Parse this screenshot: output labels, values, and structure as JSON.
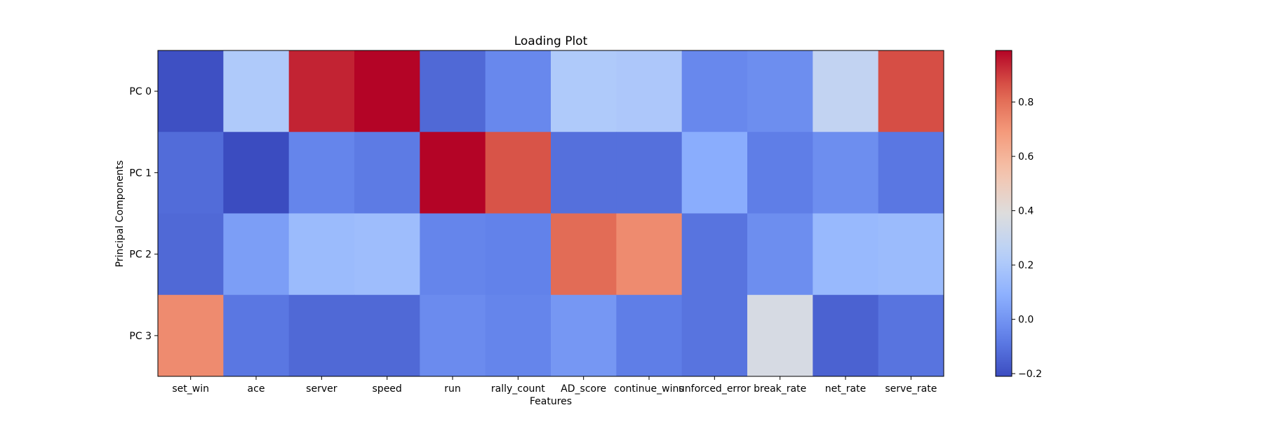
{
  "chart_data": {
    "type": "heatmap",
    "title": "Loading Plot",
    "xlabel": "Features",
    "ylabel": "Principal Components",
    "features": [
      "set_win",
      "ace",
      "server",
      "speed",
      "run",
      "rally_count",
      "AD_score",
      "continue_wins",
      "unforced_error",
      "break_rate",
      "net_rate",
      "serve_rate"
    ],
    "components": [
      "PC 0",
      "PC 1",
      "PC 2",
      "PC 3"
    ],
    "values": [
      [
        -0.2,
        0.21,
        0.94,
        0.99,
        -0.13,
        -0.04,
        0.21,
        0.2,
        -0.04,
        -0.02,
        0.28,
        0.87
      ],
      [
        -0.12,
        -0.21,
        -0.05,
        -0.08,
        0.99,
        0.86,
        -0.11,
        -0.11,
        0.08,
        -0.07,
        -0.02,
        -0.09
      ],
      [
        -0.13,
        0.03,
        0.14,
        0.15,
        -0.05,
        -0.06,
        0.81,
        0.73,
        -0.1,
        -0.02,
        0.13,
        0.14
      ],
      [
        0.73,
        -0.09,
        -0.13,
        -0.13,
        -0.03,
        -0.05,
        0.01,
        -0.07,
        -0.1,
        0.36,
        -0.15,
        -0.1
      ]
    ],
    "colorbar": {
      "colormap": "coolwarm",
      "vmin": -0.21,
      "vmax": 0.99,
      "ticks": [
        -0.2,
        0.0,
        0.2,
        0.4,
        0.6,
        0.8
      ],
      "tick_labels": [
        "−0.2",
        "0.0",
        "0.2",
        "0.4",
        "0.6",
        "0.8"
      ]
    },
    "grid": false
  }
}
